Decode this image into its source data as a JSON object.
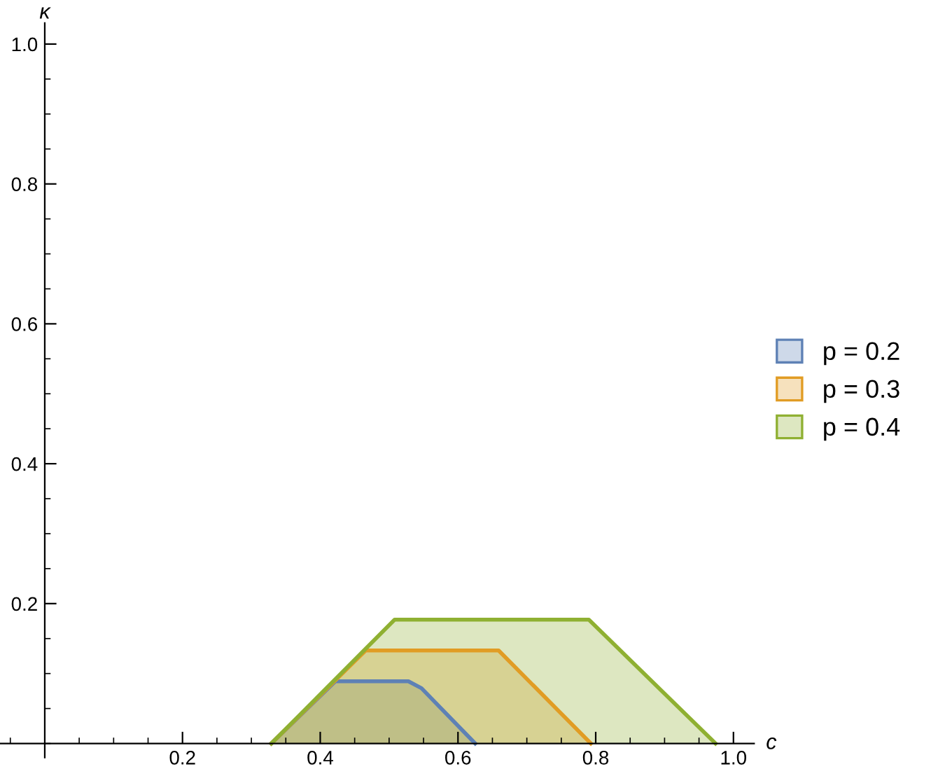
{
  "chart_data": {
    "type": "area",
    "xlabel": "c",
    "ylabel": "κ",
    "xlim": [
      -0.065,
      1.03
    ],
    "ylim": [
      -0.02,
      1.03
    ],
    "xticks": [
      0.2,
      0.4,
      0.6,
      0.8,
      {
        "value": 1.0,
        "label": "1.0"
      }
    ],
    "yticks": [
      0.2,
      0.4,
      0.6,
      0.8,
      {
        "value": 1.0,
        "label": "1.0"
      }
    ],
    "grid": false,
    "legend": "right",
    "series": [
      {
        "name": "p = 0.2",
        "color": "#5e81b5",
        "x": [
          0.329,
          0.422,
          0.528,
          0.547,
          0.625
        ],
        "values": [
          0,
          0.089,
          0.089,
          0.079,
          0
        ]
      },
      {
        "name": "p = 0.3",
        "color": "#e19c24",
        "x": [
          0.329,
          0.466,
          0.659,
          0.793
        ],
        "values": [
          0,
          0.133,
          0.133,
          0
        ]
      },
      {
        "name": "p = 0.4",
        "color": "#8fb032",
        "x": [
          0.329,
          0.508,
          0.79,
          0.974
        ],
        "values": [
          0,
          0.177,
          0.177,
          0
        ]
      }
    ]
  }
}
